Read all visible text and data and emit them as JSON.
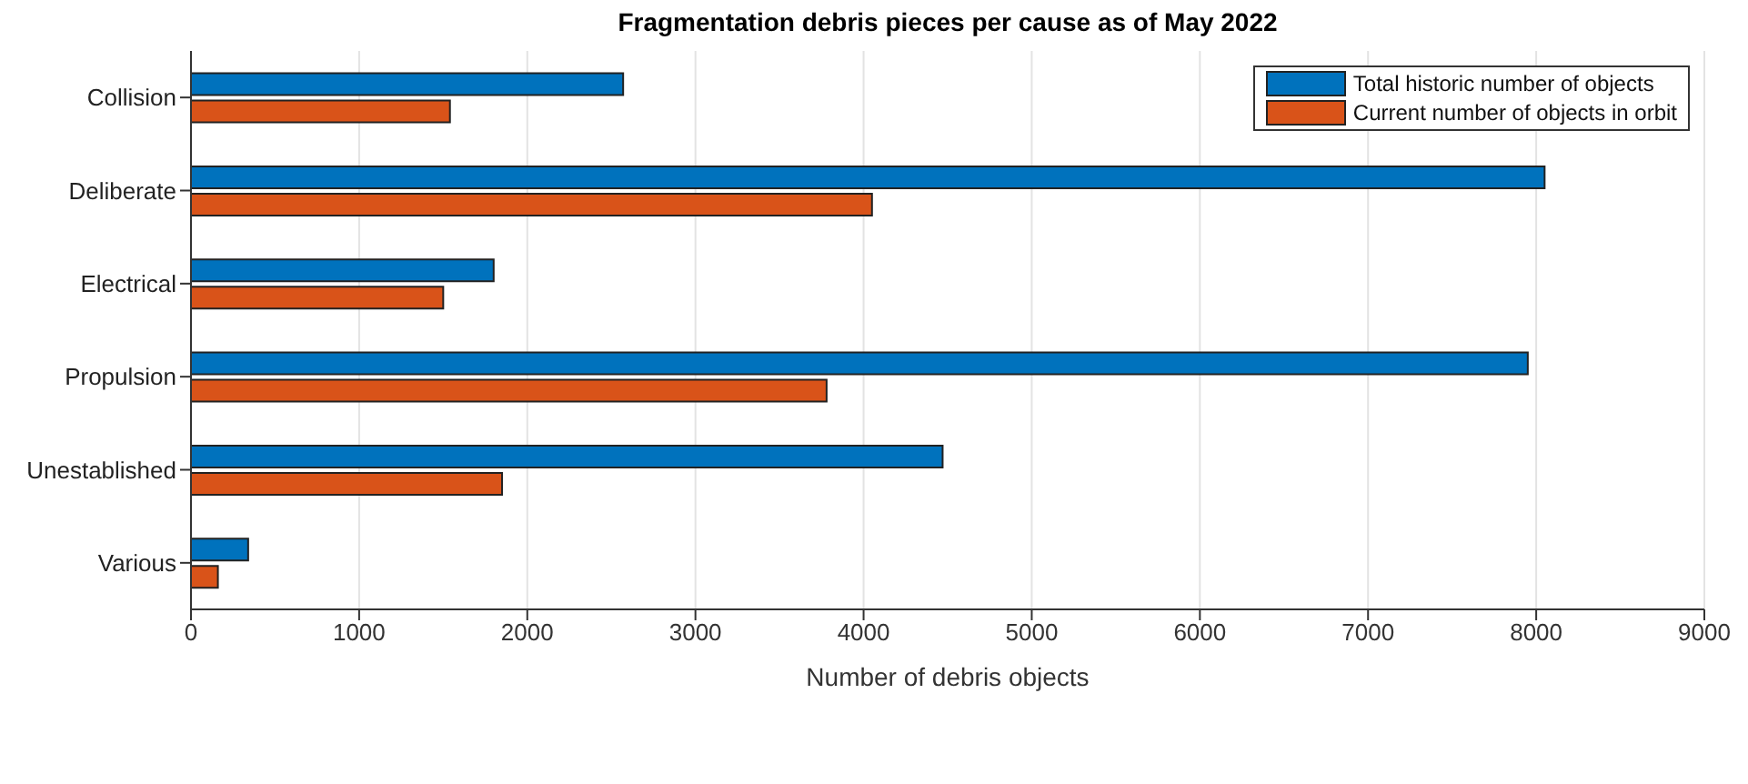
{
  "chart_data": {
    "type": "bar",
    "orientation": "horizontal",
    "title": "Fragmentation debris pieces per cause as of May 2022",
    "xlabel": "Number of debris objects",
    "categories": [
      "Collision",
      "Deliberate",
      "Electrical",
      "Propulsion",
      "Unestablished",
      "Various"
    ],
    "series": [
      {
        "name": "Total historic number of objects",
        "color": "#0072bd",
        "values": [
          2570,
          8050,
          1800,
          7950,
          4470,
          340
        ]
      },
      {
        "name": "Current number of objects in orbit",
        "color": "#d95319",
        "values": [
          1540,
          4050,
          1500,
          3780,
          1850,
          160
        ]
      }
    ],
    "xlim": [
      0,
      9000
    ],
    "xticks": [
      0,
      1000,
      2000,
      3000,
      4000,
      5000,
      6000,
      7000,
      8000,
      9000
    ],
    "grid": "x",
    "legend": "top right"
  }
}
